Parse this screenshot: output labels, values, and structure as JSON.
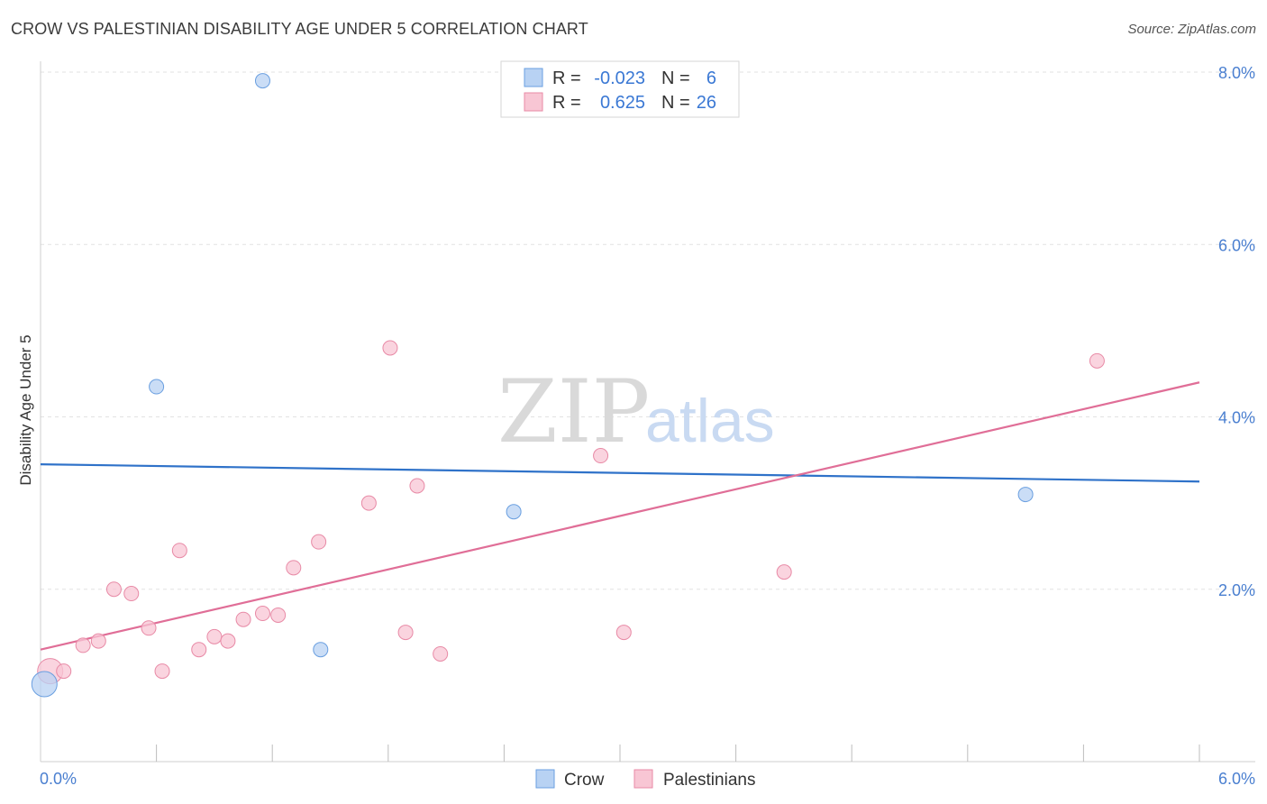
{
  "title": "CROW VS PALESTINIAN DISABILITY AGE UNDER 5 CORRELATION CHART",
  "source": "Source: ZipAtlas.com",
  "watermark": {
    "zip": "ZIP",
    "atlas": "atlas"
  },
  "colors": {
    "crow_fill": "#b8d2f3",
    "crow_stroke": "#6a9fe0",
    "crow_line": "#2f72c9",
    "pal_fill": "#f8c6d4",
    "pal_stroke": "#e88aa6",
    "pal_line": "#e06e97",
    "grid": "#e2e2e2",
    "tick_text": "#4a7fd0"
  },
  "legend": {
    "rows": [
      {
        "r_label": "R =",
        "r_value": "-0.023",
        "n_label": "N =",
        "n_value": "6"
      },
      {
        "r_label": "R =",
        "r_value": "0.625",
        "n_label": "N =",
        "n_value": "26"
      }
    ]
  },
  "chart_data": {
    "type": "scatter",
    "title": "CROW VS PALESTINIAN DISABILITY AGE UNDER 5 CORRELATION CHART",
    "xlabel": "",
    "ylabel": "Disability Age Under 5",
    "xlim": [
      0,
      6
    ],
    "ylim": [
      0,
      8
    ],
    "x_tick_labels": [
      "0.0%",
      "6.0%"
    ],
    "y_ticks": [
      2,
      4,
      6,
      8
    ],
    "y_tick_labels": [
      "2.0%",
      "4.0%",
      "6.0%",
      "8.0%"
    ],
    "series": [
      {
        "name": "Crow",
        "points": [
          {
            "x": 0.02,
            "y": 0.9,
            "big": true
          },
          {
            "x": 0.6,
            "y": 4.35
          },
          {
            "x": 1.15,
            "y": 7.9
          },
          {
            "x": 1.45,
            "y": 1.3
          },
          {
            "x": 2.45,
            "y": 2.9
          },
          {
            "x": 5.1,
            "y": 3.1
          }
        ],
        "trend": {
          "x0": 0,
          "y0": 3.45,
          "x1": 6,
          "y1": 3.25
        }
      },
      {
        "name": "Palestinians",
        "points": [
          {
            "x": 0.05,
            "y": 1.05,
            "big": true
          },
          {
            "x": 0.12,
            "y": 1.05
          },
          {
            "x": 0.22,
            "y": 1.35
          },
          {
            "x": 0.3,
            "y": 1.4
          },
          {
            "x": 0.38,
            "y": 2.0
          },
          {
            "x": 0.47,
            "y": 1.95
          },
          {
            "x": 0.56,
            "y": 1.55
          },
          {
            "x": 0.63,
            "y": 1.05
          },
          {
            "x": 0.72,
            "y": 2.45
          },
          {
            "x": 0.82,
            "y": 1.3
          },
          {
            "x": 0.9,
            "y": 1.45
          },
          {
            "x": 0.97,
            "y": 1.4
          },
          {
            "x": 1.05,
            "y": 1.65
          },
          {
            "x": 1.15,
            "y": 1.72
          },
          {
            "x": 1.23,
            "y": 1.7
          },
          {
            "x": 1.31,
            "y": 2.25
          },
          {
            "x": 1.44,
            "y": 2.55
          },
          {
            "x": 1.7,
            "y": 3.0
          },
          {
            "x": 1.81,
            "y": 4.8
          },
          {
            "x": 1.89,
            "y": 1.5
          },
          {
            "x": 1.95,
            "y": 3.2
          },
          {
            "x": 2.07,
            "y": 1.25
          },
          {
            "x": 2.9,
            "y": 3.55
          },
          {
            "x": 3.02,
            "y": 1.5
          },
          {
            "x": 3.85,
            "y": 2.2
          },
          {
            "x": 5.47,
            "y": 4.65
          }
        ],
        "trend": {
          "x0": 0,
          "y0": 1.3,
          "x1": 6,
          "y1": 4.4
        }
      }
    ]
  }
}
